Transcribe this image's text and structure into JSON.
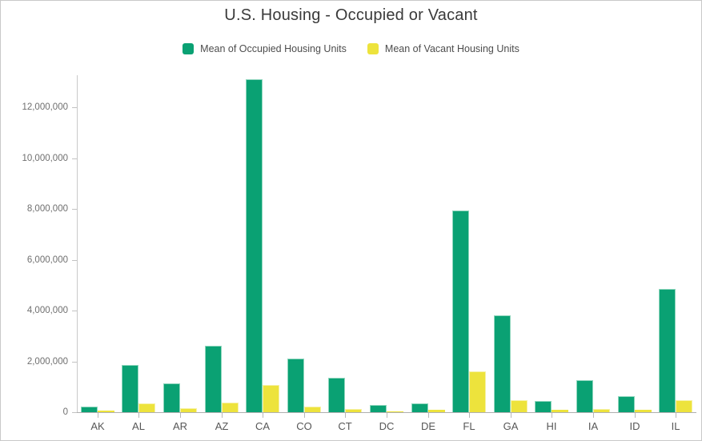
{
  "chart_data": {
    "type": "bar",
    "title": "U.S. Housing - Occupied or Vacant",
    "categories": [
      "AK",
      "AL",
      "AR",
      "AZ",
      "CA",
      "CO",
      "CT",
      "DC",
      "DE",
      "FL",
      "GA",
      "HI",
      "IA",
      "ID",
      "IL"
    ],
    "series": [
      {
        "name": "Mean of Occupied Housing Units",
        "key": "occupied",
        "color": "#0AA173",
        "edge_color": "#8fd6bd",
        "values": [
          230000,
          1850000,
          1140000,
          2600000,
          13100000,
          2100000,
          1360000,
          270000,
          350000,
          7950000,
          3820000,
          440000,
          1270000,
          640000,
          4860000
        ]
      },
      {
        "name": "Mean of Vacant Housing Units",
        "key": "vacant",
        "color": "#EDE33C",
        "edge_color": "#f6f1a5",
        "values": [
          60000,
          360000,
          160000,
          390000,
          1060000,
          210000,
          120000,
          40000,
          80000,
          1600000,
          470000,
          80000,
          140000,
          90000,
          470000
        ]
      }
    ],
    "xlabel": "",
    "ylabel": "",
    "ylim": [
      0,
      13300000
    ],
    "yticks": [
      0,
      2000000,
      4000000,
      6000000,
      8000000,
      10000000,
      12000000
    ],
    "ytick_labels": [
      "0",
      "2,000,000",
      "4,000,000",
      "6,000,000",
      "8,000,000",
      "10,000,000",
      "12,000,000"
    ],
    "grid": false,
    "legend_position": "top-center"
  }
}
